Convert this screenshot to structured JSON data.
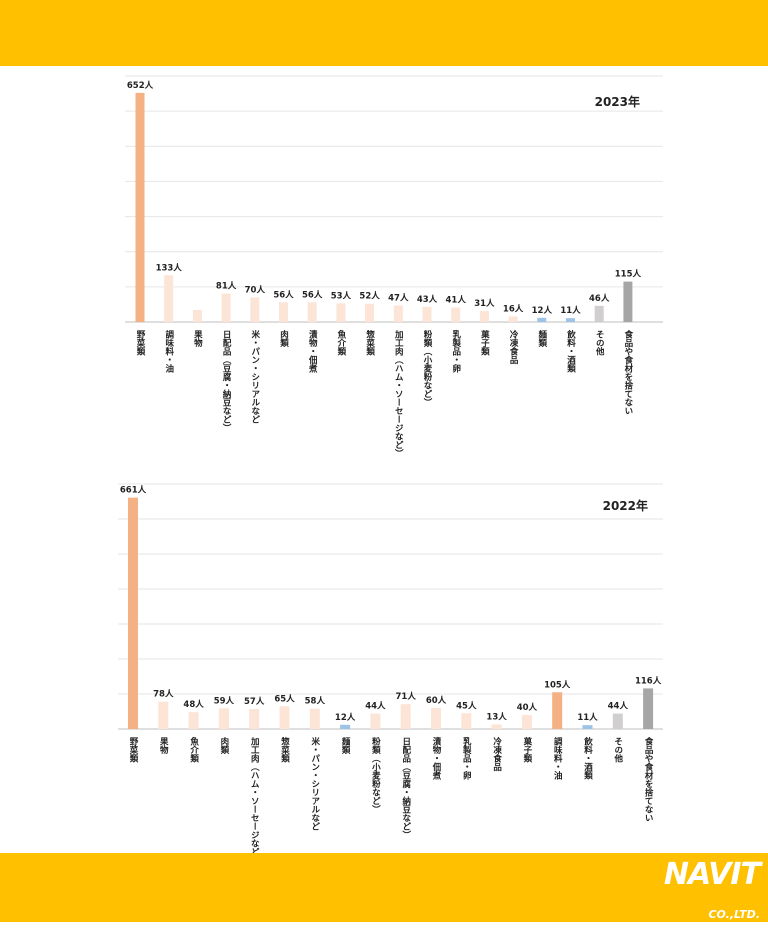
{
  "header": {},
  "logo": {
    "brand": "NAVIT",
    "suffix": "CO.,LTD.",
    "url": "www.navit-j.com"
  },
  "unit": "人",
  "colors": {
    "band": "#FFC000",
    "highlight": "#F4B183",
    "light": "#FCE4D6",
    "blue": "#9DC3E6",
    "grey": "#D0CECE",
    "darkgrey": "#A6A6A6"
  },
  "chart_data": [
    {
      "type": "bar",
      "title": "2023年",
      "ylim": [
        0,
        700
      ],
      "grid": true,
      "categories": [
        "野菜類",
        "調味料・油",
        "果物",
        "日配品（豆腐・納豆など）",
        "米・パン・シリアルなど",
        "肉類",
        "漬物・佃煮",
        "魚介類",
        "惣菜類",
        "加工肉（ハム・ソーセージなど）",
        "粉類（小麦粉など）",
        "乳製品・卵",
        "菓子類",
        "冷凍食品",
        "麺類",
        "飲料・酒類",
        "その他",
        "食品や食材を捨てない"
      ],
      "values": [
        652,
        133,
        null,
        81,
        70,
        56,
        56,
        53,
        52,
        47,
        43,
        41,
        31,
        16,
        12,
        11,
        46,
        115
      ],
      "value_labels": [
        "652人",
        "133人",
        "",
        "81人",
        "70人",
        "56人",
        "56人",
        "53人",
        "52人",
        "47人",
        "43人",
        "41人",
        "31人",
        "16人",
        "12人",
        "11人",
        "46人",
        "115人"
      ],
      "colors": [
        "highlight",
        "light",
        "light",
        "light",
        "light",
        "light",
        "light",
        "light",
        "light",
        "light",
        "light",
        "light",
        "light",
        "light",
        "blue",
        "blue",
        "grey",
        "darkgrey"
      ]
    },
    {
      "type": "bar",
      "title": "2022年",
      "ylim": [
        0,
        700
      ],
      "grid": true,
      "categories": [
        "野菜類",
        "果物",
        "魚介類",
        "肉類",
        "加工肉（ハム・ソーセージなど）",
        "惣菜類",
        "米・パン・シリアルなど",
        "麺類",
        "粉類（小麦粉など）",
        "日配品（豆腐・納豆など）",
        "漬物・佃煮",
        "乳製品・卵",
        "冷凍食品",
        "菓子類",
        "調味料・油",
        "飲料・酒類",
        "その他",
        "食品や食材を捨てない"
      ],
      "values": [
        661,
        78,
        48,
        59,
        57,
        65,
        58,
        12,
        44,
        71,
        60,
        45,
        13,
        40,
        105,
        11,
        44,
        116
      ],
      "value_labels": [
        "661人",
        "78人",
        "48人",
        "59人",
        "57人",
        "65人",
        "58人",
        "12人",
        "44人",
        "71人",
        "60人",
        "45人",
        "13人",
        "40人",
        "105人",
        "11人",
        "44人",
        "116人"
      ],
      "colors": [
        "highlight",
        "light",
        "light",
        "light",
        "light",
        "light",
        "light",
        "blue",
        "light",
        "light",
        "light",
        "light",
        "light",
        "light",
        "highlight",
        "blue",
        "grey",
        "darkgrey"
      ]
    }
  ]
}
